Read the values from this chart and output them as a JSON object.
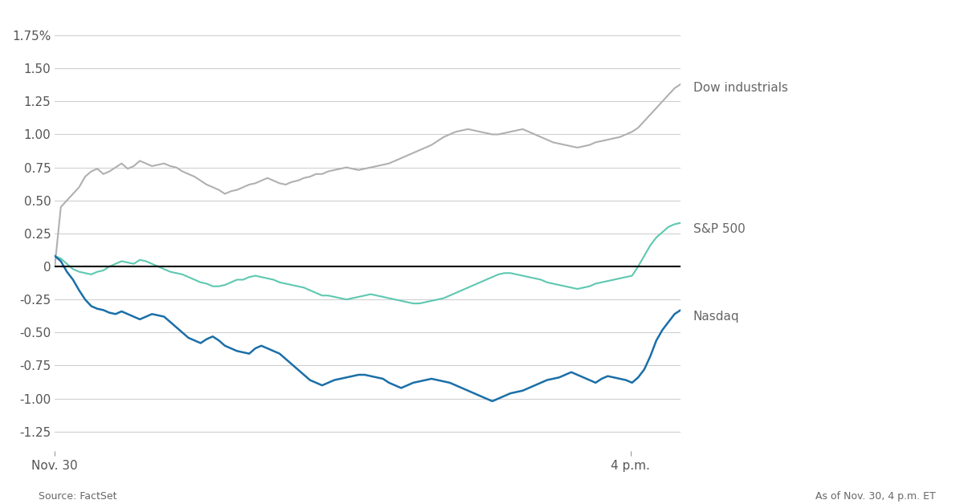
{
  "title": "",
  "source_text": "Source: FactSet",
  "as_of_text": "As of Nov. 30, 4 p.m. ET",
  "x_label_left": "Nov. 30",
  "x_label_right": "4 p.m.",
  "ylim": [
    -1.4,
    1.85
  ],
  "yticks": [
    -1.25,
    -1.0,
    -0.75,
    -0.5,
    -0.25,
    0,
    0.25,
    0.5,
    0.75,
    1.0,
    1.25,
    1.5,
    1.75
  ],
  "ytick_labels": [
    "-1.25",
    "-1.00",
    "-0.75",
    "-0.50",
    "-0.25",
    "0",
    "0.25",
    "0.50",
    "0.75",
    "1.00",
    "1.25",
    "1.50",
    "1.75%"
  ],
  "dow_color": "#b0b0b0",
  "sp500_color": "#5dc8b0",
  "nasdaq_color": "#1a6fa8",
  "zero_line_color": "#000000",
  "grid_color": "#d0d0d0",
  "background_color": "#ffffff",
  "legend_text_color": "#666666",
  "dow_label": "Dow industrials",
  "sp500_label": "S&P 500",
  "nasdaq_label": "Nasdaq",
  "dow_data": [
    0.0,
    0.45,
    0.5,
    0.55,
    0.6,
    0.68,
    0.72,
    0.74,
    0.7,
    0.72,
    0.75,
    0.78,
    0.74,
    0.76,
    0.8,
    0.78,
    0.76,
    0.77,
    0.78,
    0.76,
    0.75,
    0.72,
    0.7,
    0.68,
    0.65,
    0.62,
    0.6,
    0.58,
    0.55,
    0.57,
    0.58,
    0.6,
    0.62,
    0.63,
    0.65,
    0.67,
    0.65,
    0.63,
    0.62,
    0.64,
    0.65,
    0.67,
    0.68,
    0.7,
    0.7,
    0.72,
    0.73,
    0.74,
    0.75,
    0.74,
    0.73,
    0.74,
    0.75,
    0.76,
    0.77,
    0.78,
    0.8,
    0.82,
    0.84,
    0.86,
    0.88,
    0.9,
    0.92,
    0.95,
    0.98,
    1.0,
    1.02,
    1.03,
    1.04,
    1.03,
    1.02,
    1.01,
    1.0,
    1.0,
    1.01,
    1.02,
    1.03,
    1.04,
    1.02,
    1.0,
    0.98,
    0.96,
    0.94,
    0.93,
    0.92,
    0.91,
    0.9,
    0.91,
    0.92,
    0.94,
    0.95,
    0.96,
    0.97,
    0.98,
    1.0,
    1.02,
    1.05,
    1.1,
    1.15,
    1.2,
    1.25,
    1.3,
    1.35,
    1.38
  ],
  "sp500_data": [
    0.08,
    0.06,
    0.02,
    -0.02,
    -0.04,
    -0.05,
    -0.06,
    -0.04,
    -0.03,
    0.0,
    0.02,
    0.04,
    0.03,
    0.02,
    0.05,
    0.04,
    0.02,
    0.0,
    -0.02,
    -0.04,
    -0.05,
    -0.06,
    -0.08,
    -0.1,
    -0.12,
    -0.13,
    -0.15,
    -0.15,
    -0.14,
    -0.12,
    -0.1,
    -0.1,
    -0.08,
    -0.07,
    -0.08,
    -0.09,
    -0.1,
    -0.12,
    -0.13,
    -0.14,
    -0.15,
    -0.16,
    -0.18,
    -0.2,
    -0.22,
    -0.22,
    -0.23,
    -0.24,
    -0.25,
    -0.24,
    -0.23,
    -0.22,
    -0.21,
    -0.22,
    -0.23,
    -0.24,
    -0.25,
    -0.26,
    -0.27,
    -0.28,
    -0.28,
    -0.27,
    -0.26,
    -0.25,
    -0.24,
    -0.22,
    -0.2,
    -0.18,
    -0.16,
    -0.14,
    -0.12,
    -0.1,
    -0.08,
    -0.06,
    -0.05,
    -0.05,
    -0.06,
    -0.07,
    -0.08,
    -0.09,
    -0.1,
    -0.12,
    -0.13,
    -0.14,
    -0.15,
    -0.16,
    -0.17,
    -0.16,
    -0.15,
    -0.13,
    -0.12,
    -0.11,
    -0.1,
    -0.09,
    -0.08,
    -0.07,
    0.0,
    0.08,
    0.16,
    0.22,
    0.26,
    0.3,
    0.32,
    0.33
  ],
  "nasdaq_data": [
    0.08,
    0.04,
    -0.04,
    -0.1,
    -0.18,
    -0.25,
    -0.3,
    -0.32,
    -0.33,
    -0.35,
    -0.36,
    -0.34,
    -0.36,
    -0.38,
    -0.4,
    -0.38,
    -0.36,
    -0.37,
    -0.38,
    -0.42,
    -0.46,
    -0.5,
    -0.54,
    -0.56,
    -0.58,
    -0.55,
    -0.53,
    -0.56,
    -0.6,
    -0.62,
    -0.64,
    -0.65,
    -0.66,
    -0.62,
    -0.6,
    -0.62,
    -0.64,
    -0.66,
    -0.7,
    -0.74,
    -0.78,
    -0.82,
    -0.86,
    -0.88,
    -0.9,
    -0.88,
    -0.86,
    -0.85,
    -0.84,
    -0.83,
    -0.82,
    -0.82,
    -0.83,
    -0.84,
    -0.85,
    -0.88,
    -0.9,
    -0.92,
    -0.9,
    -0.88,
    -0.87,
    -0.86,
    -0.85,
    -0.86,
    -0.87,
    -0.88,
    -0.9,
    -0.92,
    -0.94,
    -0.96,
    -0.98,
    -1.0,
    -1.02,
    -1.0,
    -0.98,
    -0.96,
    -0.95,
    -0.94,
    -0.92,
    -0.9,
    -0.88,
    -0.86,
    -0.85,
    -0.84,
    -0.82,
    -0.8,
    -0.82,
    -0.84,
    -0.86,
    -0.88,
    -0.85,
    -0.83,
    -0.84,
    -0.85,
    -0.86,
    -0.88,
    -0.84,
    -0.78,
    -0.68,
    -0.56,
    -0.48,
    -0.42,
    -0.36,
    -0.33
  ]
}
